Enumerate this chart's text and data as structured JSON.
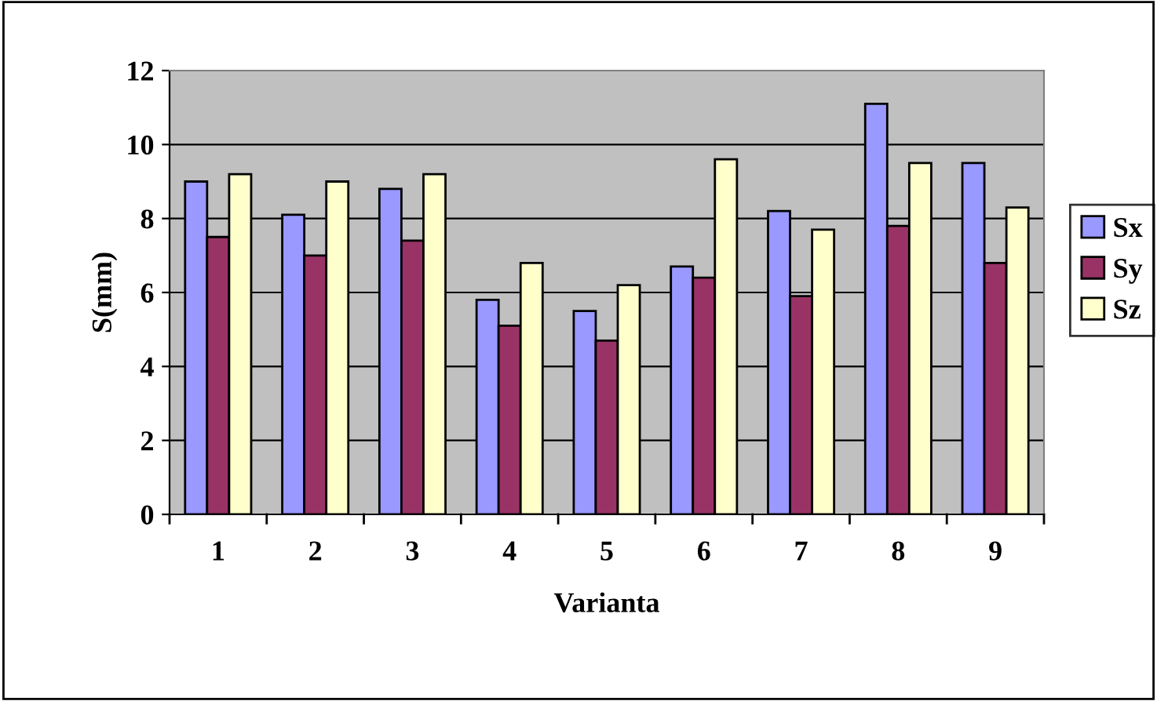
{
  "chart_data": {
    "type": "bar",
    "xlabel": "Varianta",
    "ylabel": "S(mm)",
    "categories": [
      "1",
      "2",
      "3",
      "4",
      "5",
      "6",
      "7",
      "8",
      "9"
    ],
    "series": [
      {
        "name": "Sx",
        "color": "#9999ff",
        "values": [
          9.0,
          8.1,
          8.8,
          5.8,
          5.5,
          6.7,
          8.2,
          11.1,
          9.5
        ]
      },
      {
        "name": "Sy",
        "color": "#993366",
        "values": [
          7.5,
          7.0,
          7.4,
          5.1,
          4.7,
          6.4,
          5.9,
          7.8,
          6.8
        ]
      },
      {
        "name": "Sz",
        "color": "#ffffcc",
        "values": [
          9.2,
          9.0,
          9.2,
          6.8,
          6.2,
          9.6,
          7.7,
          9.5,
          8.3
        ]
      }
    ],
    "ylim": [
      0,
      12
    ],
    "yticks": [
      0,
      2,
      4,
      6,
      8,
      10,
      12
    ],
    "grid": "y",
    "legend": "right"
  }
}
